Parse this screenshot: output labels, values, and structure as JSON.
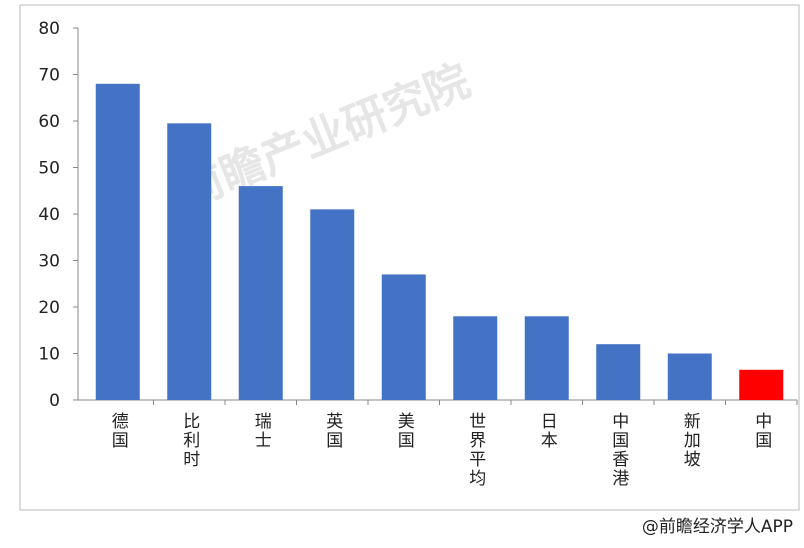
{
  "chart_data": {
    "type": "bar",
    "categories": [
      "德国",
      "比利时",
      "瑞士",
      "英国",
      "美国",
      "世界平均",
      "日本",
      "中国香港",
      "新加坡",
      "中国"
    ],
    "values": [
      68,
      59.5,
      46,
      41,
      27,
      18,
      18,
      12,
      10,
      6.5
    ],
    "colors": [
      "#4472c4",
      "#4472c4",
      "#4472c4",
      "#4472c4",
      "#4472c4",
      "#4472c4",
      "#4472c4",
      "#4472c4",
      "#4472c4",
      "#ff0000"
    ],
    "ylim": [
      0,
      80
    ],
    "yticks": [
      0,
      10,
      20,
      30,
      40,
      50,
      60,
      70,
      80
    ],
    "watermark": "前瞻产业研究院",
    "source": "@前瞻经济学人APP"
  }
}
